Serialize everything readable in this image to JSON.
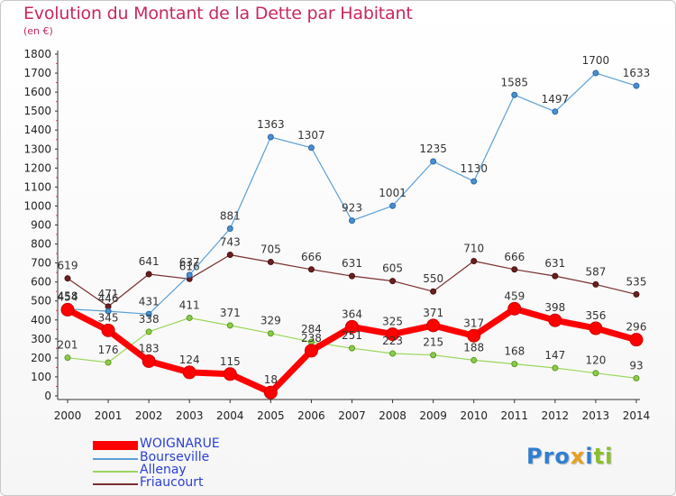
{
  "title": "Evolution du Montant de la Dette par Habitant",
  "subtitle": "(en €)",
  "logo": {
    "p1": "Pro",
    "p2": "x",
    "p3": "i",
    "p4": "ti"
  },
  "chart_data": {
    "type": "line",
    "title": "Evolution du Montant de la Dette par Habitant",
    "subtitle": "(en €)",
    "x": [
      "2000",
      "2001",
      "2002",
      "2003",
      "2004",
      "2005",
      "2006",
      "2007",
      "2008",
      "2009",
      "2010",
      "2011",
      "2012",
      "2013",
      "2014"
    ],
    "ylim": [
      0,
      1800
    ],
    "yticks": [
      0,
      100,
      200,
      300,
      400,
      500,
      600,
      700,
      800,
      900,
      1000,
      1100,
      1200,
      1300,
      1400,
      1500,
      1600,
      1700,
      1800
    ],
    "grid": false,
    "legend_placement": "bottom-left",
    "series": [
      {
        "name": "WOIGNARUE",
        "color": "#ff0000",
        "values": [
          454,
          345,
          183,
          124,
          115,
          18,
          238,
          364,
          325,
          371,
          317,
          459,
          398,
          356,
          296
        ]
      },
      {
        "name": "Bourseville",
        "color": "#5aa0d8",
        "values": [
          458,
          446,
          431,
          637,
          881,
          1363,
          1307,
          923,
          1001,
          1235,
          1130,
          1585,
          1497,
          1700,
          1633
        ]
      },
      {
        "name": "Allenay",
        "color": "#9ad65c",
        "values": [
          201,
          176,
          338,
          411,
          371,
          329,
          284,
          251,
          223,
          215,
          188,
          168,
          147,
          120,
          93
        ]
      },
      {
        "name": "Friaucourt",
        "color": "#7a2e2e",
        "values": [
          619,
          471,
          641,
          616,
          743,
          705,
          666,
          631,
          605,
          550,
          710,
          666,
          631,
          587,
          535
        ]
      }
    ]
  }
}
